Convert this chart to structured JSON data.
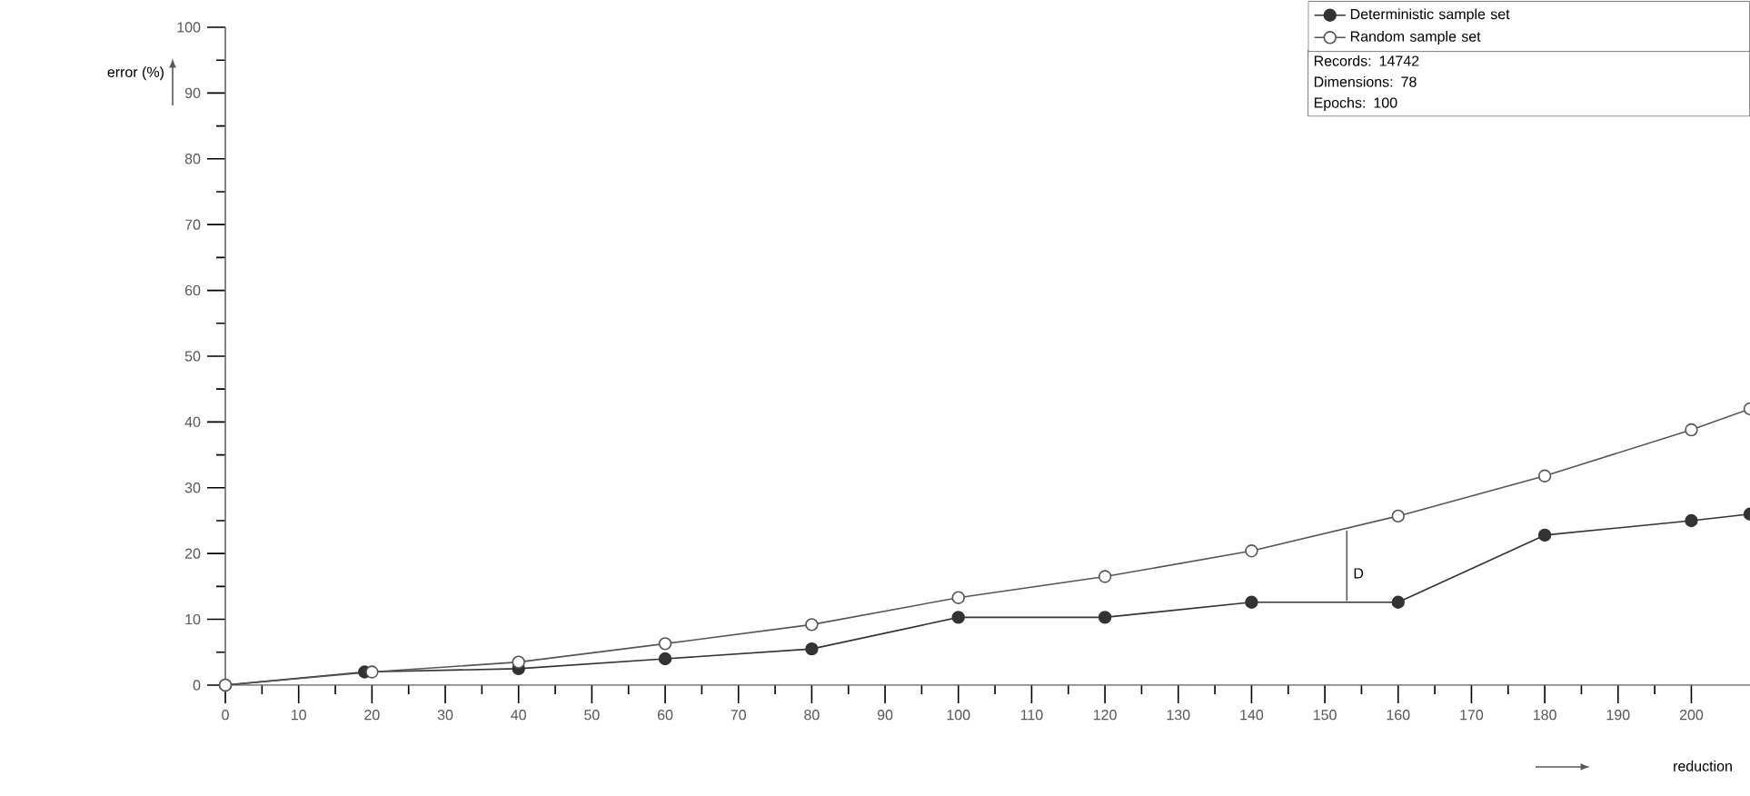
{
  "chart_data": {
    "type": "line",
    "xlabel": "reduction",
    "ylabel": "error (%)",
    "xlim": [
      0,
      208
    ],
    "ylim": [
      0,
      100
    ],
    "xticks": [
      0,
      10,
      20,
      30,
      40,
      50,
      60,
      70,
      80,
      90,
      100,
      110,
      120,
      130,
      140,
      150,
      160,
      170,
      180,
      190,
      200
    ],
    "yticks": [
      0,
      10,
      20,
      30,
      40,
      50,
      60,
      70,
      80,
      90,
      100
    ],
    "series": [
      {
        "name": "Deterministic sample set",
        "color": "#333333",
        "x": [
          0,
          19,
          40,
          60,
          80,
          100,
          120,
          140,
          160,
          180,
          200,
          208
        ],
        "values": [
          0,
          2,
          2.5,
          4,
          5.5,
          10.3,
          10.3,
          12.6,
          12.6,
          22.8,
          25,
          26
        ]
      },
      {
        "name": "Random sample set",
        "color": "#555555",
        "x": [
          0,
          20,
          40,
          60,
          80,
          100,
          120,
          140,
          160,
          180,
          200,
          208
        ],
        "values": [
          0,
          2,
          3.5,
          6.3,
          9.2,
          13.3,
          16.5,
          20.4,
          25.7,
          31.8,
          38.8,
          42
        ]
      }
    ],
    "marker": "circle",
    "legend": "top right",
    "grid": false,
    "annotations": [
      "D",
      "Records: 14742",
      "Dimensions: 78",
      "Epochs: 100"
    ]
  }
}
